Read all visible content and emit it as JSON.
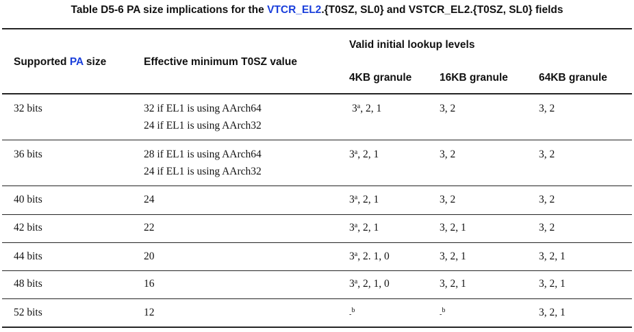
{
  "title": {
    "prefix": "Table D5-6 PA size implications for the ",
    "link": "VTCR_EL2",
    "suffix": ".{T0SZ, SL0} and VSTCR_EL2.{T0SZ, SL0} fields"
  },
  "headers": {
    "pa_size_prefix": "Supported ",
    "pa_size_link": "PA",
    "pa_size_suffix": " size",
    "min_t0sz": "Effective minimum T0SZ value",
    "lookup_levels": "Valid initial lookup levels",
    "g4": "4KB granule",
    "g16": "16KB granule",
    "g64": "64KB granule"
  },
  "rows": [
    {
      "pa": "32 bits",
      "t0sz1": "32 if EL1 is using AArch64",
      "t0sz2": "24 if EL1 is using AArch32",
      "g4_main": "3",
      "g4_sup": "a",
      "g4_rest": ", 2, 1",
      "g16": "3, 2",
      "g64": "3, 2"
    },
    {
      "pa": "36 bits",
      "t0sz1": "28 if EL1 is using AArch64",
      "t0sz2": "24 if EL1 is using AArch32",
      "g4_main": "3",
      "g4_sup": "a",
      "g4_rest": ", 2, 1",
      "g16": "3, 2",
      "g64": "3, 2"
    },
    {
      "pa": "40 bits",
      "t0sz1": "24",
      "t0sz2": "",
      "g4_main": "3",
      "g4_sup": "a",
      "g4_rest": ", 2, 1",
      "g16": "3, 2",
      "g64": "3, 2"
    },
    {
      "pa": "42 bits",
      "t0sz1": "22",
      "t0sz2": "",
      "g4_main": "3",
      "g4_sup": "a",
      "g4_rest": ", 2, 1",
      "g16": "3, 2, 1",
      "g64": "3, 2"
    },
    {
      "pa": "44 bits",
      "t0sz1": "20",
      "t0sz2": "",
      "g4_main": "3",
      "g4_sup": "a",
      "g4_rest": ", 2. 1, 0",
      "g16": "3, 2, 1",
      "g64": "3, 2, 1"
    },
    {
      "pa": "48 bits",
      "t0sz1": "16",
      "t0sz2": "",
      "g4_main": "3",
      "g4_sup": "a",
      "g4_rest": ", 2, 1, 0",
      "g16": "3, 2, 1",
      "g64": "3, 2, 1"
    },
    {
      "pa": "52 bits",
      "t0sz1": "12",
      "t0sz2": "",
      "g4_main": "-",
      "g4_sup": "b",
      "g4_rest": "",
      "g16_main": "-",
      "g16_sup": "b",
      "g64": "3, 2, 1"
    }
  ]
}
